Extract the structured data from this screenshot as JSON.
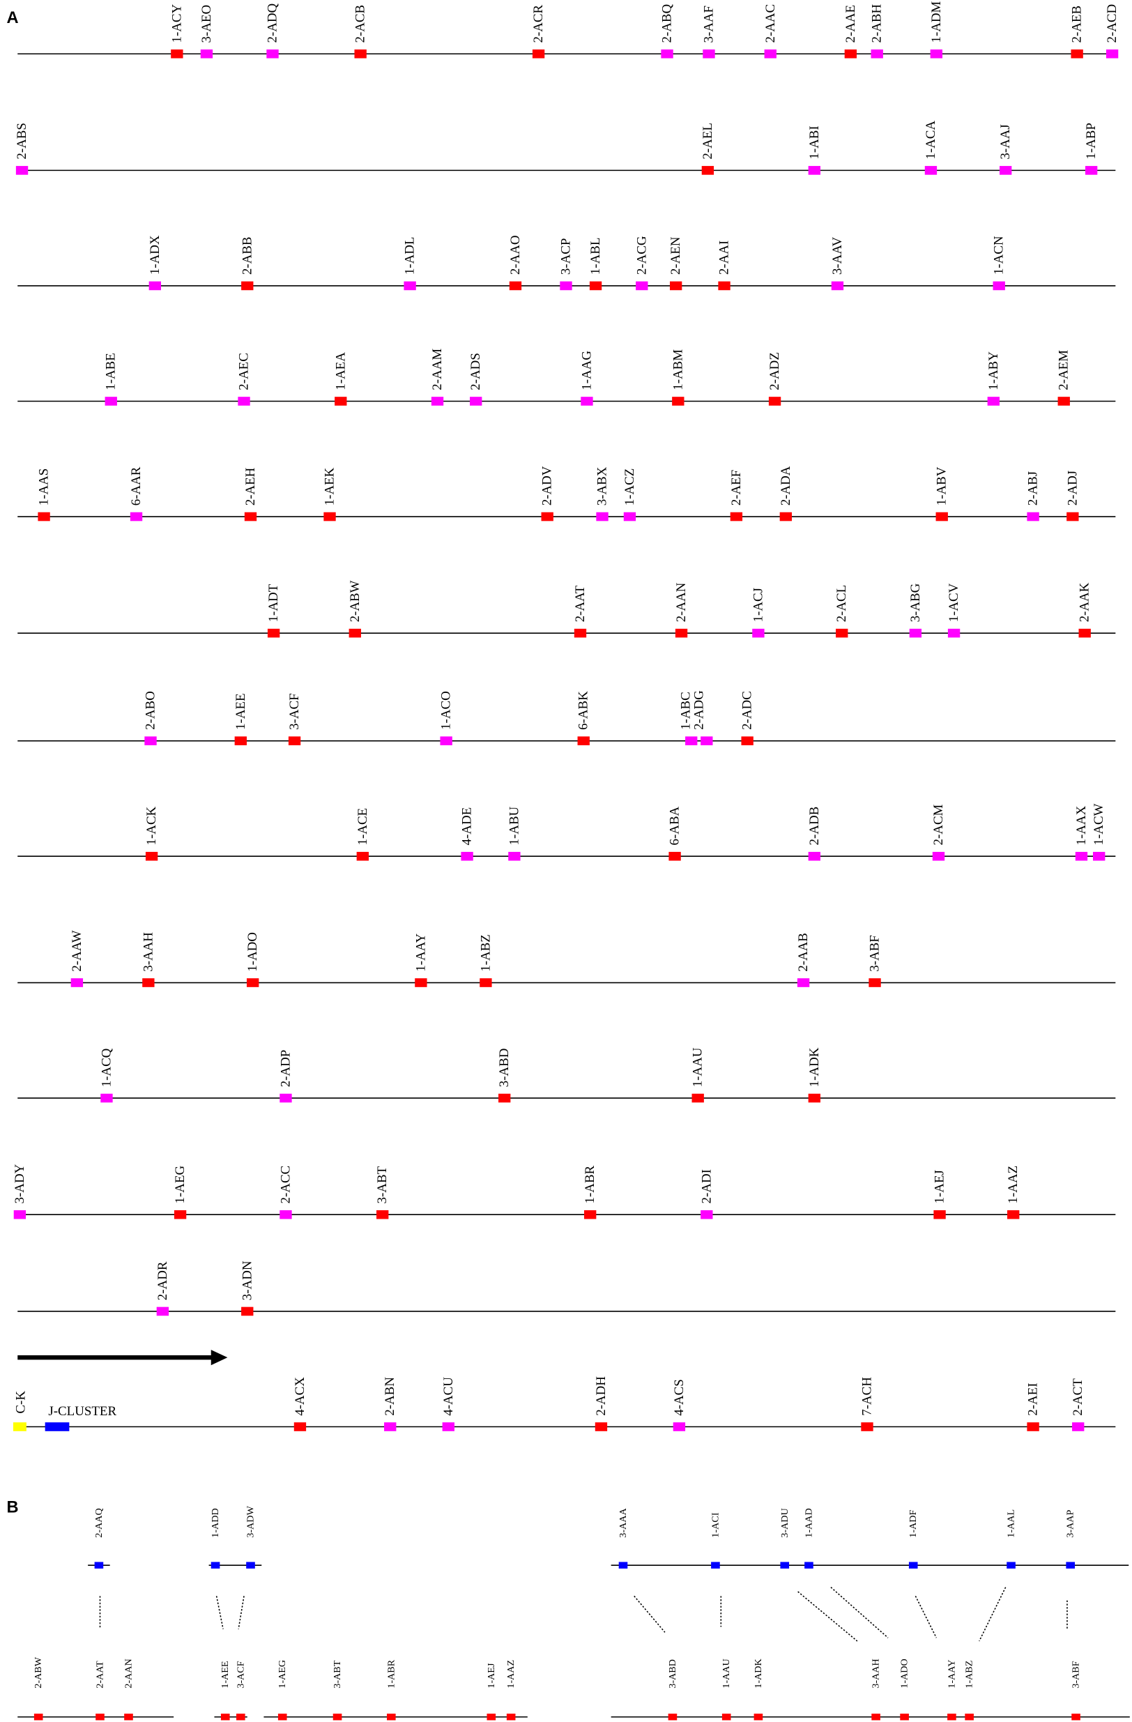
{
  "panel_a": {
    "label": "A",
    "rows": [
      [
        "1-ACY",
        "3-AEO",
        "2-ADQ",
        "2-ACB",
        "2-ACR",
        "2-ABQ",
        "3-AAF",
        "2-AAC",
        "2-AAE",
        "2-ABH",
        "1-ADM",
        "2-AEB",
        "2-ACD"
      ],
      [
        "2-ABS",
        "2-AEL",
        "1-ABI",
        "1-ACA",
        "3-AAJ",
        "1-ABP"
      ],
      [
        "1-ADX",
        "2-ABB",
        "1-ADL",
        "2-AAO",
        "3-ACP",
        "1-ABL",
        "2-ACG",
        "2-AEN",
        "2-AAI",
        "3-AAV",
        "1-ACN"
      ],
      [
        "1-ABE",
        "2-AEC",
        "1-AEA",
        "2-AAM",
        "2-ADS",
        "1-AAG",
        "1-ABM",
        "2-ADZ",
        "1-ABY",
        "2-AEM"
      ],
      [
        "1-AAS",
        "6-AAR",
        "2-AEH",
        "1-AEK",
        "2-ADV",
        "3-ABX",
        "1-ACZ",
        "2-AEF",
        "2-ADA",
        "1-ABV",
        "2-ABJ",
        "2-ADJ"
      ],
      [
        "1-ADT",
        "2-ABW",
        "2-AAT",
        "2-AAN",
        "1-ACJ",
        "2-ACL",
        "3-ABG",
        "1-ACV",
        "2-AAK"
      ],
      [
        "2-ABO",
        "1-AEE",
        "3-ACF",
        "1-ACO",
        "6-ABK",
        "1-ABC",
        "2-ADG",
        "2-ADC"
      ],
      [
        "1-ACK",
        "1-ACE",
        "4-ADE",
        "1-ABU",
        "6-ABA",
        "2-ADB",
        "2-ACM",
        "1-AAX",
        "1-ACW"
      ],
      [
        "2-AAW",
        "3-AAH",
        "1-ADO",
        "1-AAY",
        "1-ABZ",
        "2-AAB",
        "3-ABF"
      ],
      [
        "1-ACQ",
        "2-ADP",
        "3-ABD",
        "1-AAU",
        "1-ADK"
      ],
      [
        "3-ADY",
        "1-AEG",
        "2-ACC",
        "3-ABT",
        "1-ABR",
        "2-ADI",
        "1-AEJ",
        "1-AAZ"
      ],
      [
        "2-ADR",
        "3-ADN"
      ],
      [
        "4-ACX",
        "2-ABN",
        "4-ACU",
        "2-ADH",
        "4-ACS",
        "7-ACH",
        "2-AEI",
        "2-ACT"
      ]
    ],
    "c_k": "C-K",
    "j_cluster": "J-CLUSTER"
  },
  "panel_b": {
    "label": "B",
    "top": [
      "2-AAQ",
      "1-ADD",
      "3-ADW",
      "3-AAA",
      "1-ACI",
      "3-ADU",
      "1-AAD",
      "1-ADF",
      "1-AAL",
      "3-AAP"
    ],
    "bottom": [
      "2-ABW",
      "2-AAT",
      "2-AAN",
      "1-AEE",
      "3-ACF",
      "1-AEG",
      "3-ABT",
      "1-ABR",
      "1-AEJ",
      "1-AAZ",
      "3-ABD",
      "1-AAU",
      "1-ADK",
      "3-AAH",
      "1-ADO",
      "1-AAY",
      "1-ABZ",
      "3-ABF"
    ]
  }
}
